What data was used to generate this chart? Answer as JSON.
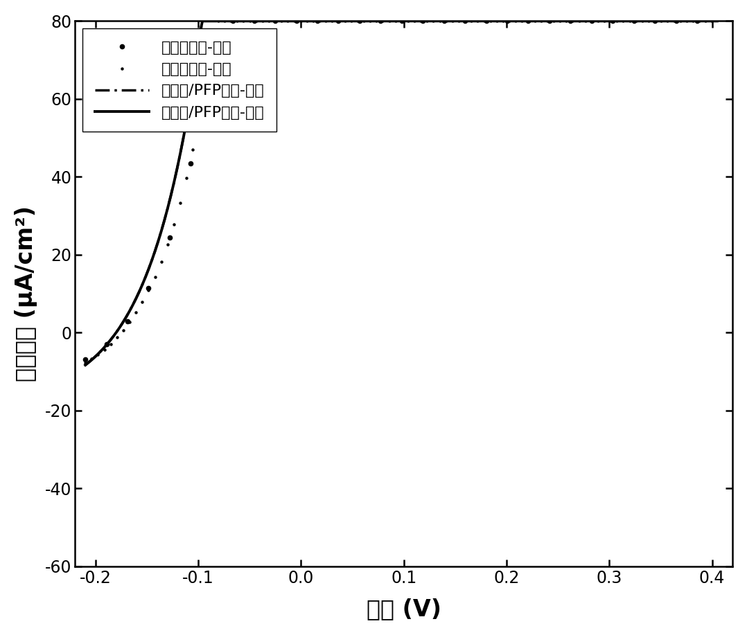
{
  "title": "",
  "xlabel": "电压 (V)",
  "ylabel": "电流密度 (μA/cm²)",
  "xlim": [
    -0.22,
    0.42
  ],
  "ylim": [
    -60,
    80
  ],
  "xticks": [
    -0.2,
    -0.1,
    0.0,
    0.1,
    0.2,
    0.3,
    0.4
  ],
  "yticks": [
    -60,
    -40,
    -20,
    0,
    20,
    40,
    60,
    80
  ],
  "background_color": "#ffffff",
  "curves": [
    {
      "label": "类囊体电极-黑暗",
      "color": "#000000",
      "linewidth": 2.0
    },
    {
      "label": "类囊体电极-光照",
      "color": "#000000",
      "linewidth": 2.0
    },
    {
      "label": "类囊体/PFP电极-黑暗",
      "color": "#000000",
      "linewidth": 2.5
    },
    {
      "label": "类囊体/PFP电极-光照",
      "color": "#000000",
      "linewidth": 2.8
    }
  ]
}
